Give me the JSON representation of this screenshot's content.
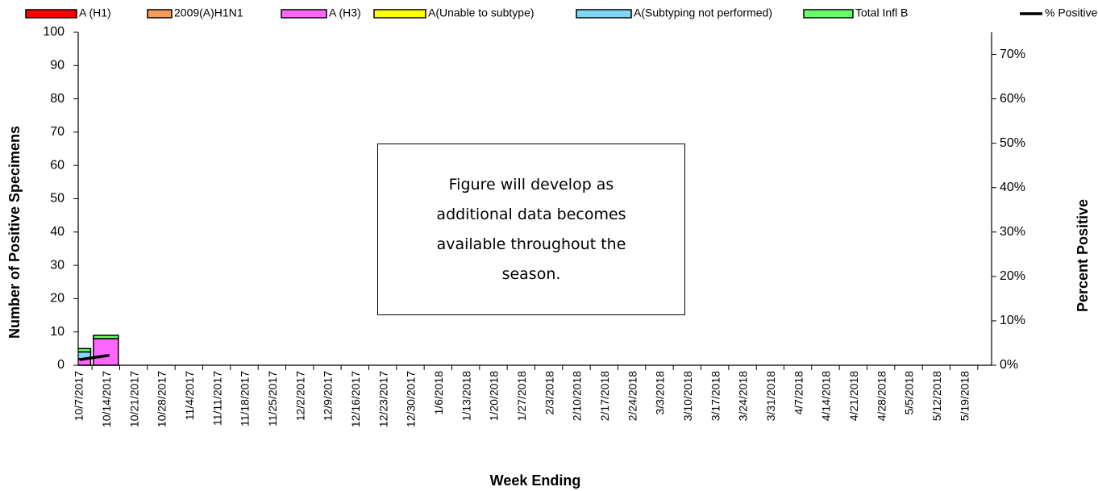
{
  "chart_data": {
    "type": "bar",
    "stacked": true,
    "x_label": "Week Ending",
    "y_label": "Number of  Positive Specimens",
    "y2_label": "Percent Positive",
    "annotation": "Figure will develop as additional data becomes available throughout the season.",
    "categories": [
      "10/7/2017",
      "10/14/2017",
      "10/21/2017",
      "10/28/2017",
      "11/4/2017",
      "11/11/2017",
      "11/18/2017",
      "11/25/2017",
      "12/2/2017",
      "12/9/2017",
      "12/16/2017",
      "12/23/2017",
      "12/30/2017",
      "1/6/2018",
      "1/13/2018",
      "1/20/2018",
      "1/27/2018",
      "2/3/2018",
      "2/10/2018",
      "2/17/2018",
      "2/24/2018",
      "3/3/2018",
      "3/10/2018",
      "3/17/2018",
      "3/24/2018",
      "3/31/2018",
      "4/7/2018",
      "4/14/2018",
      "4/21/2018",
      "4/28/2018",
      "5/5/2018",
      "5/12/2018",
      "5/19/2018",
      null
    ],
    "series": [
      {
        "name": "A (H1)",
        "color": "#ff0000",
        "values": [
          0,
          0,
          0,
          0,
          0,
          0,
          0,
          0,
          0,
          0,
          0,
          0,
          0,
          0,
          0,
          0,
          0,
          0,
          0,
          0,
          0,
          0,
          0,
          0,
          0,
          0,
          0,
          0,
          0,
          0,
          0,
          0,
          0,
          null
        ]
      },
      {
        "name": "2009(A)H1N1",
        "color": "#f79a5a",
        "values": [
          0,
          0,
          0,
          0,
          0,
          0,
          0,
          0,
          0,
          0,
          0,
          0,
          0,
          0,
          0,
          0,
          0,
          0,
          0,
          0,
          0,
          0,
          0,
          0,
          0,
          0,
          0,
          0,
          0,
          0,
          0,
          0,
          0,
          null
        ]
      },
      {
        "name": "A (H3)",
        "color": "#ff66ff",
        "values": [
          2,
          8,
          0,
          0,
          0,
          0,
          0,
          0,
          0,
          0,
          0,
          0,
          0,
          0,
          0,
          0,
          0,
          0,
          0,
          0,
          0,
          0,
          0,
          0,
          0,
          0,
          0,
          0,
          0,
          0,
          0,
          0,
          0,
          null
        ]
      },
      {
        "name": "A(Unable to subtype)",
        "color": "#ffff00",
        "values": [
          0,
          0,
          0,
          0,
          0,
          0,
          0,
          0,
          0,
          0,
          0,
          0,
          0,
          0,
          0,
          0,
          0,
          0,
          0,
          0,
          0,
          0,
          0,
          0,
          0,
          0,
          0,
          0,
          0,
          0,
          0,
          0,
          0,
          null
        ]
      },
      {
        "name": "A(Subtyping not performed)",
        "color": "#7fd7f7",
        "values": [
          2,
          0,
          0,
          0,
          0,
          0,
          0,
          0,
          0,
          0,
          0,
          0,
          0,
          0,
          0,
          0,
          0,
          0,
          0,
          0,
          0,
          0,
          0,
          0,
          0,
          0,
          0,
          0,
          0,
          0,
          0,
          0,
          0,
          null
        ]
      },
      {
        "name": "Total Infl B",
        "color": "#66ff66",
        "values": [
          1,
          1,
          0,
          0,
          0,
          0,
          0,
          0,
          0,
          0,
          0,
          0,
          0,
          0,
          0,
          0,
          0,
          0,
          0,
          0,
          0,
          0,
          0,
          0,
          0,
          0,
          0,
          0,
          0,
          0,
          0,
          0,
          0,
          null
        ]
      },
      {
        "name": "% Positive",
        "color": "#000000",
        "type": "line",
        "axis": "y2",
        "values": [
          1.3,
          2.2,
          null,
          null,
          null,
          null,
          null,
          null,
          null,
          null,
          null,
          null,
          null,
          null,
          null,
          null,
          null,
          null,
          null,
          null,
          null,
          null,
          null,
          null,
          null,
          null,
          null,
          null,
          null,
          null,
          null,
          null,
          null,
          null
        ]
      }
    ],
    "ylim": [
      0,
      100
    ],
    "yticks": [
      0,
      10,
      20,
      30,
      40,
      50,
      60,
      70,
      80,
      90,
      100
    ],
    "y2lim": [
      0,
      75
    ],
    "y2ticks": [
      {
        "value": 0,
        "label": "0%"
      },
      {
        "value": 10,
        "label": "10%"
      },
      {
        "value": 20,
        "label": "20%"
      },
      {
        "value": 30,
        "label": "30%"
      },
      {
        "value": 40,
        "label": "40%"
      },
      {
        "value": 50,
        "label": "50%"
      },
      {
        "value": 60,
        "label": "60%"
      },
      {
        "value": 70,
        "label": "70%"
      }
    ],
    "legend": "top",
    "grid": false
  }
}
